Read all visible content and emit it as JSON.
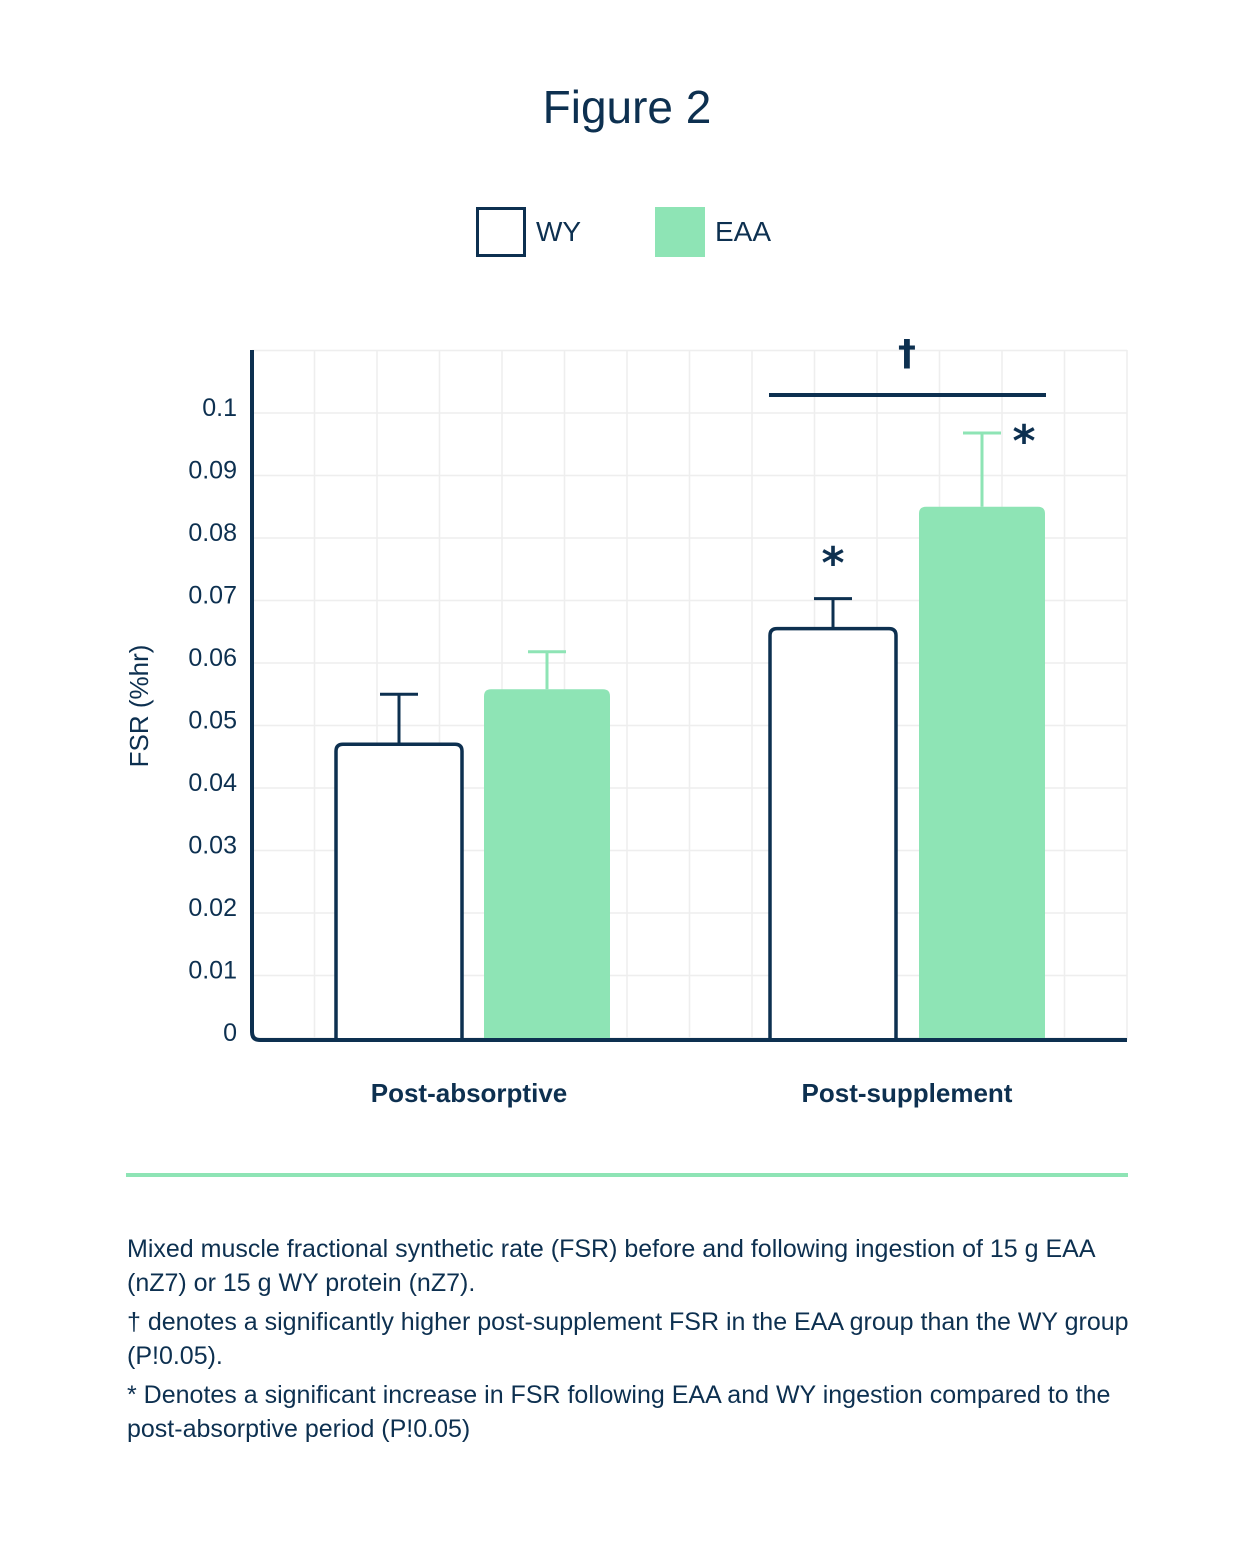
{
  "title": "Figure 2",
  "legend": {
    "items": [
      {
        "label": "WY",
        "style": "outline"
      },
      {
        "label": "EAA",
        "style": "filled"
      }
    ]
  },
  "colors": {
    "navy": "#0d3050",
    "green": "#8ee4b5",
    "grid": "#eeeeee"
  },
  "chart_data": {
    "type": "bar",
    "title": "",
    "xlabel": "",
    "ylabel": "FSR (%hr)",
    "ylim": [
      0,
      0.11
    ],
    "yticks": [
      "0",
      "0.01",
      "0.02",
      "0.03",
      "0.04",
      "0.05",
      "0.06",
      "0.07",
      "0.08",
      "0.09",
      "0.1"
    ],
    "grid": true,
    "legend_position": "top-center",
    "categories": [
      "Post-absorptive",
      "Post-supplement"
    ],
    "series": [
      {
        "name": "WY",
        "values": [
          0.047,
          0.0655
        ],
        "error": [
          0.008,
          0.0048
        ]
      },
      {
        "name": "EAA",
        "values": [
          0.0558,
          0.085
        ],
        "error": [
          0.006,
          0.0118
        ]
      }
    ],
    "annotations": {
      "star": "*",
      "dagger": "†"
    }
  },
  "caption": [
    "Mixed muscle fractional synthetic rate (FSR) before and following ingestion of 15 g EAA (nZ7) or 15 g WY protein (nZ7).",
    "† denotes a significantly higher post-supplement FSR in the EAA group than the WY group (P!0.05).",
    "* Denotes a significant increase in FSR following EAA and WY ingestion compared to the post-absorptive period (P!0.05)"
  ]
}
